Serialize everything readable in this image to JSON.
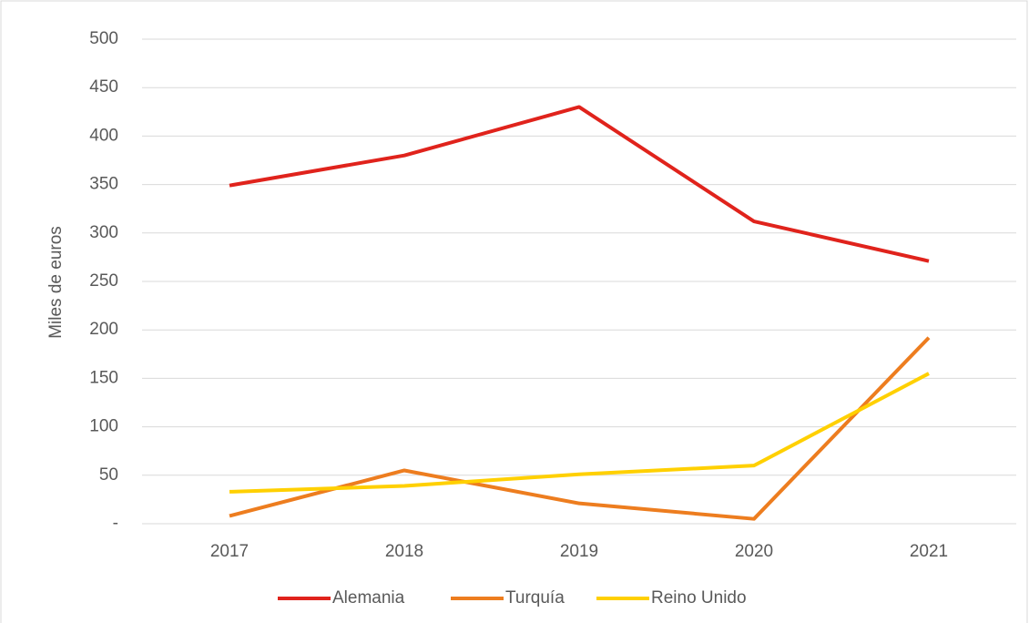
{
  "chart_data": {
    "type": "line",
    "y_label": "Miles de euros",
    "categories": [
      "2017",
      "2018",
      "2019",
      "2020",
      "2021"
    ],
    "series": [
      {
        "name": "Alemania",
        "color": "#e0231c",
        "values": [
          349,
          380,
          430,
          312,
          271
        ]
      },
      {
        "name": "Turquía",
        "color": "#ed7d1f",
        "values": [
          8,
          55,
          21,
          5,
          192
        ]
      },
      {
        "name": "Reino Unido",
        "color": "#ffd000",
        "values": [
          33,
          39,
          51,
          60,
          155
        ]
      }
    ],
    "ylim": [
      0,
      500
    ],
    "yticks": [
      {
        "value": 0,
        "label": "-"
      },
      50,
      100,
      150,
      200,
      250,
      300,
      350,
      400,
      450,
      500
    ],
    "grid": true,
    "legend": "bottom"
  }
}
